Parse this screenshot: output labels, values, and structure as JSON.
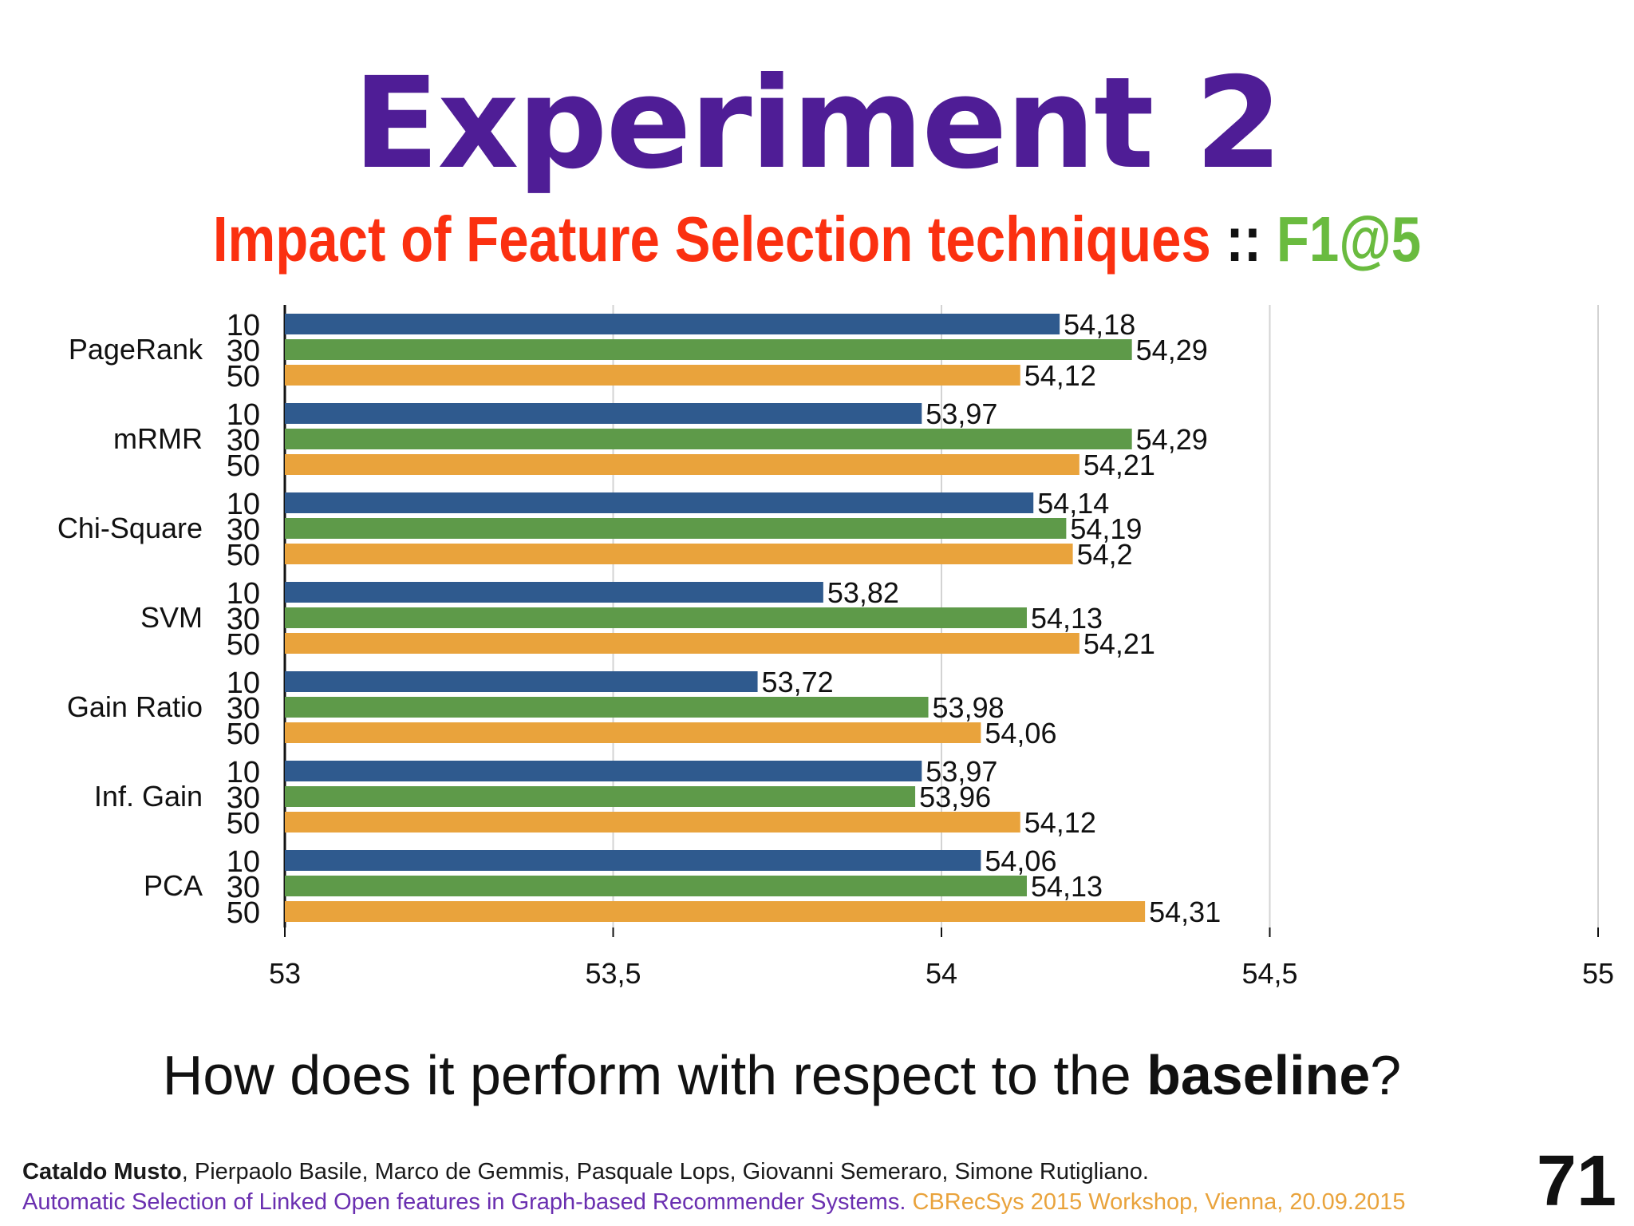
{
  "slide": {
    "title": "Experiment 2",
    "subtitle_main": "Impact of Feature Selection techniques",
    "subtitle_sep": " :: ",
    "subtitle_metric": "F1@5",
    "question_pre": "How does it perform with respect to the ",
    "question_bold": "baseline",
    "question_post": "?",
    "footer_author_bold": "Cataldo Musto",
    "footer_authors_rest": ", Pierpaolo Basile, Marco de Gemmis, Pasquale Lops, Giovanni Semeraro, Simone Rutigliano.",
    "footer_paper": "Automatic Selection of Linked Open features in Graph-based Recommender Systems.",
    "footer_venue": " CBRecSys 2015 Workshop, Vienna, 20.09.2015",
    "slide_number": "71"
  },
  "chart_data": {
    "type": "bar",
    "orientation": "horizontal",
    "groups": [
      "PageRank",
      "mRMR",
      "Chi-Square",
      "SVM",
      "Gain Ratio",
      "Inf. Gain",
      "PCA"
    ],
    "sub_labels": [
      "10",
      "30",
      "50"
    ],
    "series": [
      {
        "name": "10",
        "color": "#2f5a8e",
        "values": [
          54.18,
          53.97,
          54.14,
          53.82,
          53.72,
          53.97,
          54.06
        ],
        "labels": [
          "54,18",
          "53,97",
          "54,14",
          "53,82",
          "53,72",
          "53,97",
          "54,06"
        ]
      },
      {
        "name": "30",
        "color": "#5e9a49",
        "values": [
          54.29,
          54.29,
          54.19,
          54.13,
          53.98,
          53.96,
          54.13
        ],
        "labels": [
          "54,29",
          "54,29",
          "54,19",
          "54,13",
          "53,98",
          "53,96",
          "54,13"
        ]
      },
      {
        "name": "50",
        "color": "#e9a33c",
        "values": [
          54.12,
          54.21,
          54.2,
          54.21,
          54.06,
          54.12,
          54.31
        ],
        "labels": [
          "54,12",
          "54,21",
          "54,2",
          "54,21",
          "54,06",
          "54,12",
          "54,31"
        ]
      }
    ],
    "xlim": [
      53,
      55
    ],
    "xticks": [
      53,
      53.5,
      54,
      54.5,
      55
    ],
    "xtick_labels": [
      "53",
      "53,5",
      "54",
      "54,5",
      "55"
    ],
    "grid": true,
    "legend": "none"
  }
}
